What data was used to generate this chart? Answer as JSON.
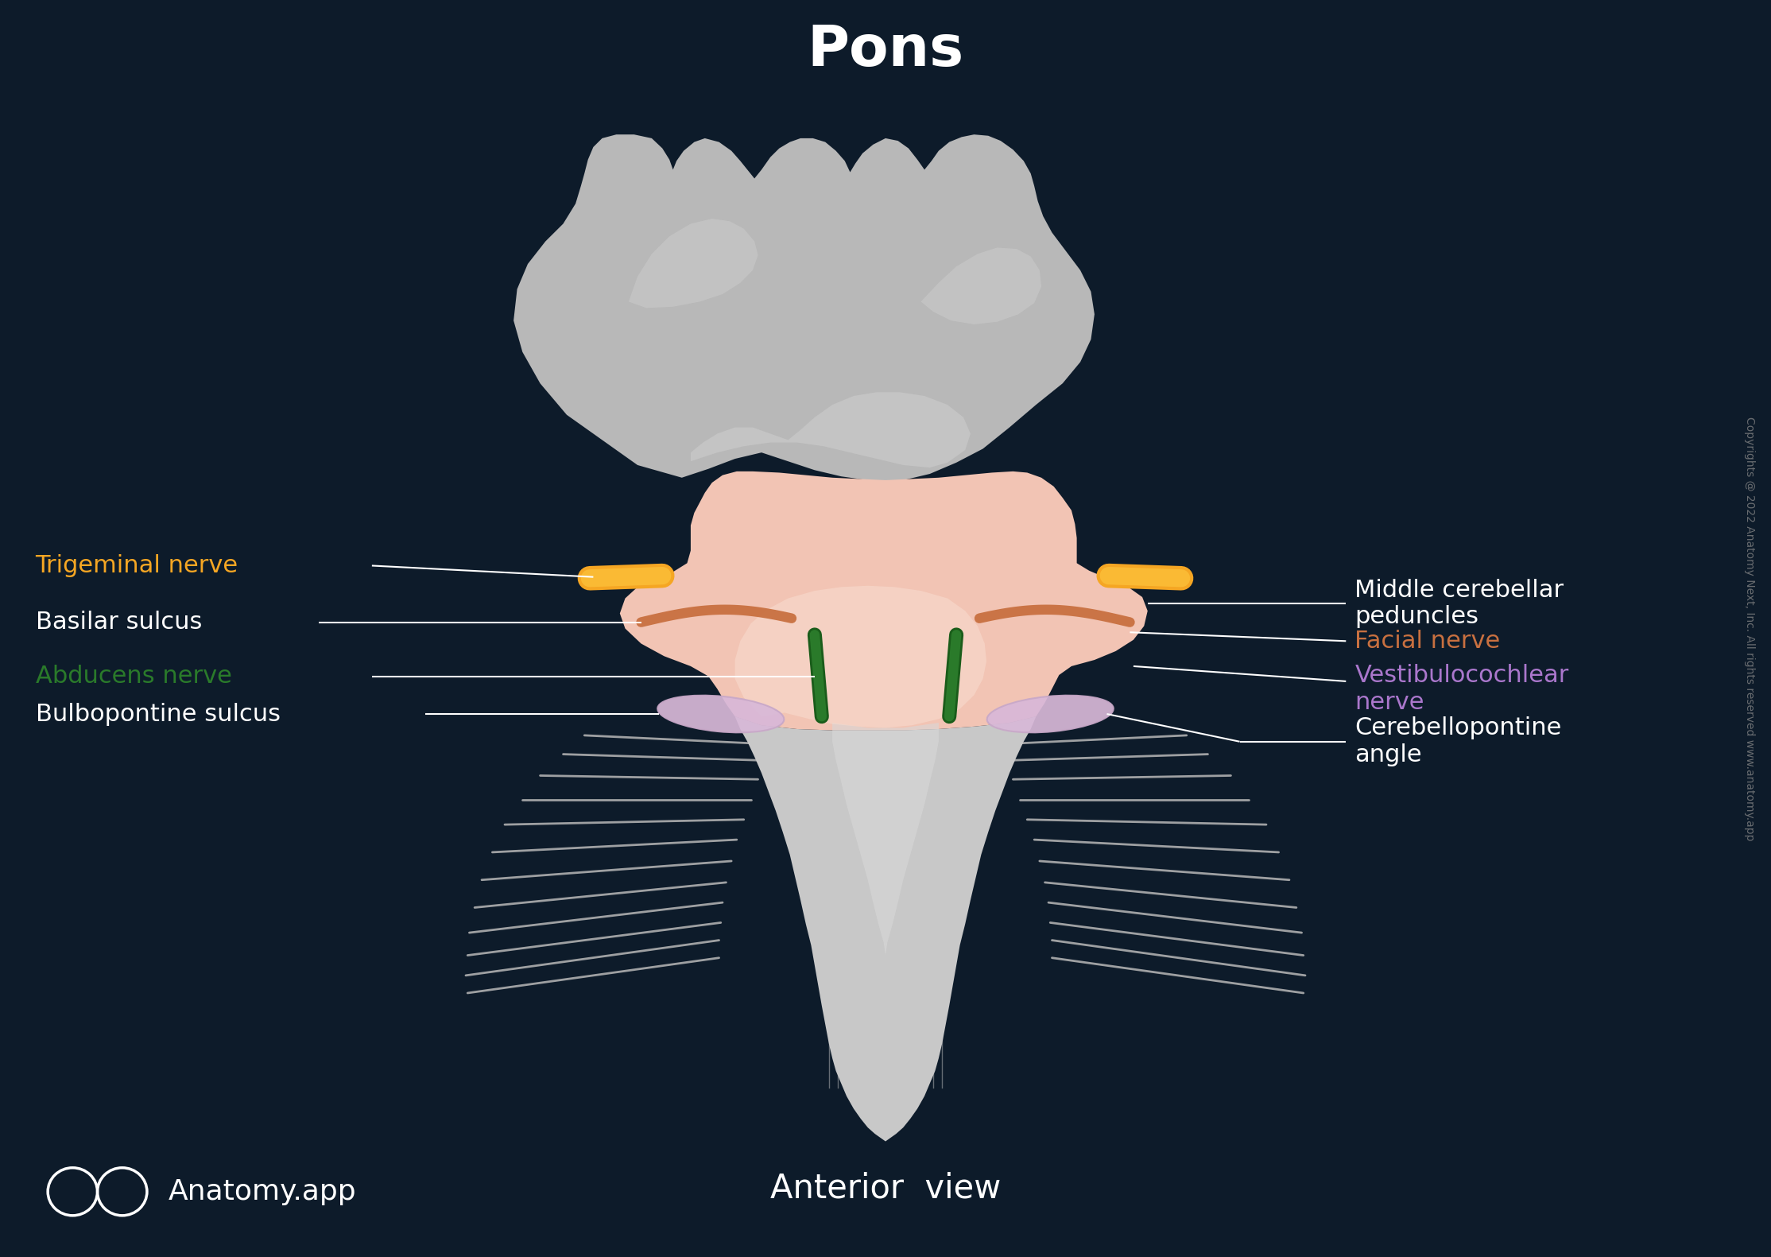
{
  "title": "Pons",
  "subtitle": "Anterior  view",
  "background_color": "#0d1b2a",
  "title_color": "#ffffff",
  "title_fontsize": 52,
  "subtitle_fontsize": 30,
  "watermark_text": "Copyrights @ 2022 Anatomy Next, Inc. All rights reserved www.anatomy.app",
  "watermark_color": "#888888",
  "logo_text": "Anatomy.app",
  "logo_color": "#ffffff",
  "pons_color": "#f2c4b4",
  "pons_highlight": "#fadadd",
  "cerebellum_color": "#c0c0c0",
  "medulla_color": "#c8c8c8",
  "trigeminal_color": "#f5a623",
  "basilar_color": "#c87040",
  "abducens_color": "#2a7a2a",
  "vestibulocochlear_color": "#cc99cc",
  "label_trigeminal": "Trigeminal nerve",
  "label_trigeminal_color": "#f5a623",
  "label_basilar": "Basilar sulcus",
  "label_basilar_color": "#ffffff",
  "label_abducens": "Abducens nerve",
  "label_abducens_color": "#2a7a2a",
  "label_bulbopontine": "Bulbopontine sulcus",
  "label_bulbopontine_color": "#ffffff",
  "label_middle_cerebellar": "Middle cerebellar\npeduncles",
  "label_middle_cerebellar_color": "#ffffff",
  "label_facial": "Facial nerve",
  "label_facial_color": "#c87040",
  "label_vestibulocochlear": "Vestibulocochlear\nnerve",
  "label_vestibulocochlear_color": "#aa77cc",
  "label_cerebellopontine": "Cerebellopontine\nangle",
  "label_cerebellopontine_color": "#ffffff"
}
